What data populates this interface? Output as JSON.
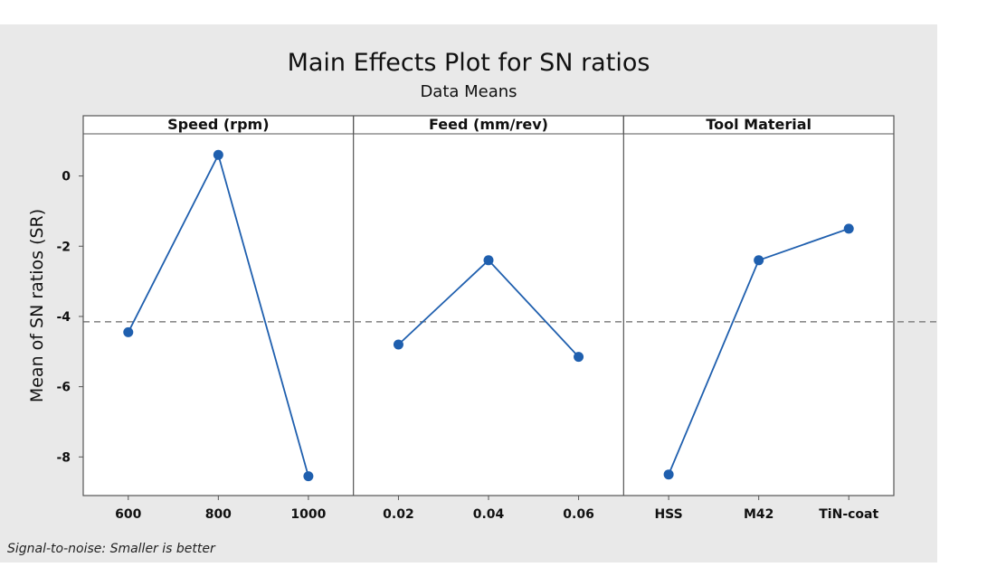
{
  "chart_data": {
    "type": "line",
    "title": "Main Effects Plot for SN ratios",
    "subtitle": "Data Means",
    "ylabel": "Mean of SN ratios (SR)",
    "footnote": "Signal-to-noise: Smaller is better",
    "ylim": [
      -9.1,
      1.2
    ],
    "yticks": [
      0,
      -2,
      -4,
      -6,
      -8
    ],
    "reference_mean": -4.15,
    "reference_line": "dashed",
    "line_color": "#1f5fae",
    "panels": [
      {
        "name": "Speed (rpm)",
        "categories": [
          "600",
          "800",
          "1000"
        ],
        "values": [
          -4.45,
          0.6,
          -8.55
        ]
      },
      {
        "name": "Feed (mm/rev)",
        "categories": [
          "0.02",
          "0.04",
          "0.06"
        ],
        "values": [
          -4.8,
          -2.4,
          -5.15
        ]
      },
      {
        "name": "Tool Material",
        "categories": [
          "HSS",
          "M42",
          "TiN-coat"
        ],
        "values": [
          -8.5,
          -2.4,
          -1.5
        ]
      }
    ]
  }
}
